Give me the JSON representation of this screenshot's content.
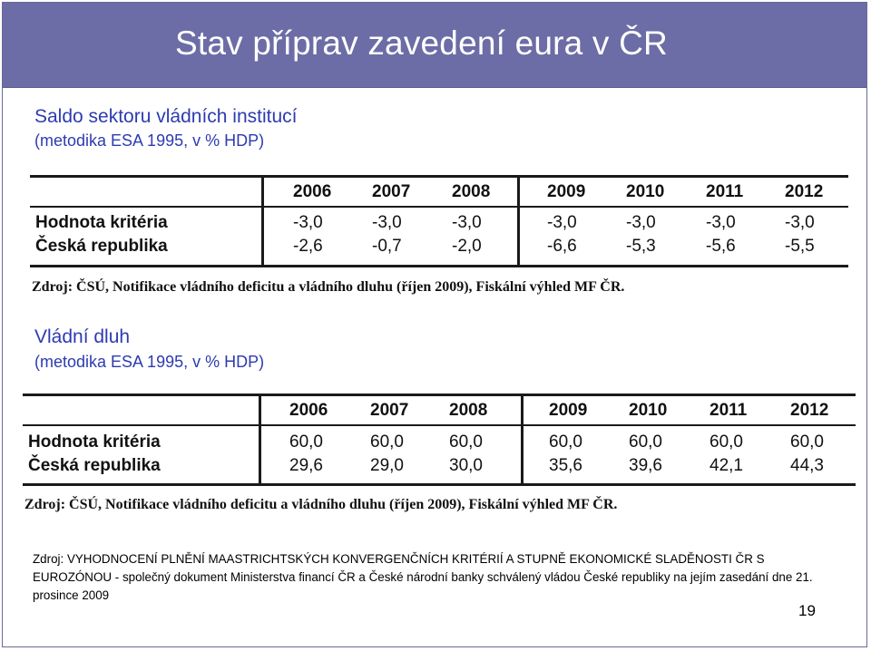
{
  "title": "Stav příprav zavedení eura v ČR",
  "section1": {
    "heading": "Saldo sektoru vládních institucí",
    "subheading": "(metodika ESA 1995, v % HDP)",
    "table": {
      "years": [
        "2006",
        "2007",
        "2008",
        "2009",
        "2010",
        "2011",
        "2012"
      ],
      "rows": [
        {
          "label": "Hodnota kritéria",
          "values": [
            "-3,0",
            "-3,0",
            "-3,0",
            "-3,0",
            "-3,0",
            "-3,0",
            "-3,0"
          ]
        },
        {
          "label": "Česká republika",
          "values": [
            "-2,6",
            "-0,7",
            "-2,0",
            "-6,6",
            "-5,3",
            "-5,6",
            "-5,5"
          ]
        }
      ],
      "source": "Zdroj: ČSÚ, Notifikace vládního deficitu a vládního dluhu (říjen 2009), Fiskální výhled MF ČR."
    }
  },
  "section2": {
    "heading": "Vládní dluh",
    "subheading": "(metodika ESA 1995, v % HDP)",
    "table": {
      "years": [
        "2006",
        "2007",
        "2008",
        "2009",
        "2010",
        "2011",
        "2012"
      ],
      "rows": [
        {
          "label": "Hodnota kritéria",
          "values": [
            "60,0",
            "60,0",
            "60,0",
            "60,0",
            "60,0",
            "60,0",
            "60,0"
          ]
        },
        {
          "label": "Česká republika",
          "values": [
            "29,6",
            "29,0",
            "30,0",
            "35,6",
            "39,6",
            "42,1",
            "44,3"
          ]
        }
      ],
      "source": "Zdroj: ČSÚ, Notifikace vládního deficitu a vládního dluhu (říjen 2009), Fiskální výhled MF ČR."
    }
  },
  "footer": {
    "text": "Zdroj: VYHODNOCENÍ PLNĚNÍ MAASTRICHTSKÝCH KONVERGENČNÍCH KRITÉRIÍ A STUPNĚ EKONOMICKÉ SLADĚNOSTI ČR S EUROZÓNOU - společný dokument Ministerstva financí ČR a České národní banky schválený vládou České republiky na jejím zasedání dne 21. prosince 2009"
  },
  "page_number": "19"
}
